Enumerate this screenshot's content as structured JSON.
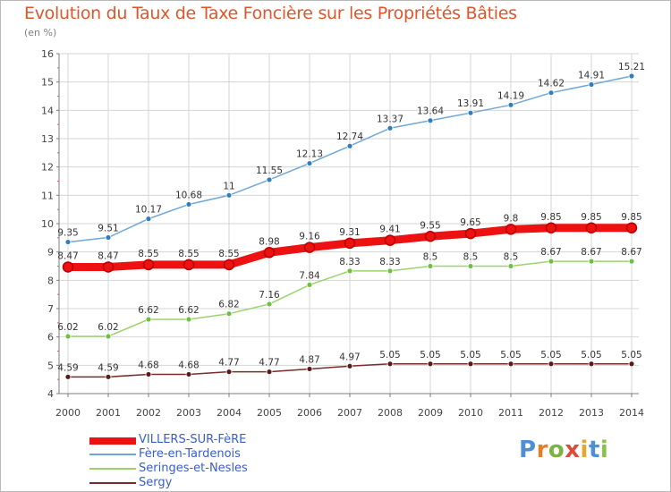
{
  "title": "Evolution du Taux de Taxe Foncière sur les Propriétés Bâties",
  "subtitle": "(en %)",
  "brand": {
    "logo_letters": [
      "P",
      "r",
      "o",
      "x",
      "i",
      "t",
      "i"
    ],
    "logo_colors": [
      "#4f8fd6",
      "#e27f2d",
      "#7cb342",
      "#d94d3a",
      "#e3a72b",
      "#4f8fd6",
      "#8bc34a"
    ]
  },
  "colors": {
    "title": "#e0552a",
    "grid": "#d4d4d4",
    "axis": "#7d7d7d",
    "legend_text": "#3a5ec9"
  },
  "chart_data": {
    "type": "line",
    "x": [
      "2000",
      "2001",
      "2002",
      "2003",
      "2004",
      "2005",
      "2006",
      "2007",
      "2008",
      "2009",
      "2010",
      "2011",
      "2012",
      "2013",
      "2014"
    ],
    "ylim": [
      4,
      16
    ],
    "yticks": [
      "4",
      "5",
      "6",
      "7",
      "8",
      "9",
      "10",
      "11",
      "12",
      "13",
      "14",
      "15",
      "16"
    ],
    "grid": true,
    "legend_position": "bottom-left",
    "series": [
      {
        "name": "VILLERS-SUR-FèRE",
        "color": "#ee1111",
        "marker_color": "#8b1a1a",
        "values": [
          8.47,
          8.47,
          8.55,
          8.55,
          8.55,
          8.98,
          9.16,
          9.31,
          9.41,
          9.55,
          9.65,
          9.8,
          9.85,
          9.85,
          9.85
        ],
        "labels": [
          "8.47",
          "8.47",
          "8.55",
          "8.55",
          "8.55",
          "8.98",
          "9.16",
          "9.31",
          "9.41",
          "9.55",
          "9.65",
          "9.8",
          "9.85",
          "9.85",
          "9.85"
        ]
      },
      {
        "name": "Fère-en-Tardenois",
        "color": "#6fa7d8",
        "marker_color": "#2f7fc0",
        "values": [
          9.35,
          9.51,
          10.17,
          10.68,
          11,
          11.55,
          12.13,
          12.74,
          13.37,
          13.64,
          13.91,
          14.19,
          14.62,
          14.91,
          15.21
        ],
        "labels": [
          "9.35",
          "9.51",
          "10.17",
          "10.68",
          "11",
          "11.55",
          "12.13",
          "12.74",
          "13.37",
          "13.64",
          "13.91",
          "14.19",
          "14.62",
          "14.91",
          "15.21"
        ]
      },
      {
        "name": "Seringes-et-Nesles",
        "color": "#9bd36b",
        "marker_color": "#6fbf45",
        "values": [
          6.02,
          6.02,
          6.62,
          6.62,
          6.82,
          7.16,
          7.84,
          8.33,
          8.33,
          8.5,
          8.5,
          8.5,
          8.67,
          8.67,
          8.67
        ],
        "labels": [
          "6.02",
          "6.02",
          "6.62",
          "6.62",
          "6.82",
          "7.16",
          "7.84",
          "8.33",
          "8.33",
          "8.5",
          "8.5",
          "8.5",
          "8.67",
          "8.67",
          "8.67"
        ]
      },
      {
        "name": "Sergy",
        "color": "#7a2b2b",
        "marker_color": "#5a1a1a",
        "values": [
          4.59,
          4.59,
          4.68,
          4.68,
          4.77,
          4.77,
          4.87,
          4.97,
          5.05,
          5.05,
          5.05,
          5.05,
          5.05,
          5.05,
          5.05
        ],
        "labels": [
          "4.59",
          "4.59",
          "4.68",
          "4.68",
          "4.77",
          "4.77",
          "4.87",
          "4.97",
          "5.05",
          "5.05",
          "5.05",
          "5.05",
          "5.05",
          "5.05",
          "5.05"
        ]
      }
    ]
  }
}
